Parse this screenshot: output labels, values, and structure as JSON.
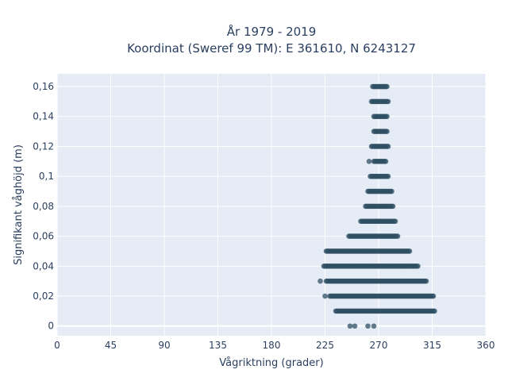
{
  "chart_data": {
    "type": "scatter",
    "title_lines": [
      "År 1979 - 2019",
      "Koordinat (Sweref 99 TM): E 361610, N 6243127"
    ],
    "xlabel": "Vågriktning (grader)",
    "ylabel": "Signifikant våghöjd (m)",
    "xlim": [
      0,
      360
    ],
    "ylim": [
      -0.0065,
      0.1685
    ],
    "x_ticks": [
      0,
      45,
      90,
      135,
      180,
      225,
      270,
      315,
      360
    ],
    "x_tick_labels": [
      "0",
      "45",
      "90",
      "135",
      "180",
      "225",
      "270",
      "315",
      "360"
    ],
    "y_ticks": [
      0,
      0.02,
      0.04,
      0.06,
      0.08,
      0.1,
      0.12,
      0.14,
      0.16
    ],
    "y_tick_labels": [
      "0",
      "0,02",
      "0,04",
      "0,06",
      "0,08",
      "0,1",
      "0,12",
      "0,14",
      "0,16"
    ],
    "grid": true,
    "marker_color": "#2f4f63",
    "background_color": "#e5ecf6",
    "bands": [
      {
        "y": 0.16,
        "x_min": 265,
        "x_max": 277
      },
      {
        "y": 0.15,
        "x_min": 264,
        "x_max": 278
      },
      {
        "y": 0.14,
        "x_min": 266,
        "x_max": 277
      },
      {
        "y": 0.13,
        "x_min": 266,
        "x_max": 277
      },
      {
        "y": 0.12,
        "x_min": 264,
        "x_max": 278
      },
      {
        "y": 0.11,
        "x_min": 266,
        "x_max": 276
      },
      {
        "y": 0.1,
        "x_min": 263,
        "x_max": 278
      },
      {
        "y": 0.09,
        "x_min": 261,
        "x_max": 281
      },
      {
        "y": 0.08,
        "x_min": 259,
        "x_max": 282
      },
      {
        "y": 0.07,
        "x_min": 255,
        "x_max": 284
      },
      {
        "y": 0.06,
        "x_min": 245,
        "x_max": 286
      },
      {
        "y": 0.05,
        "x_min": 226,
        "x_max": 296
      },
      {
        "y": 0.04,
        "x_min": 224,
        "x_max": 303
      },
      {
        "y": 0.03,
        "x_min": 226,
        "x_max": 310
      },
      {
        "y": 0.02,
        "x_min": 229,
        "x_max": 316
      },
      {
        "y": 0.01,
        "x_min": 234,
        "x_max": 317
      }
    ],
    "outliers": [
      {
        "x": 221,
        "y": 0.03
      },
      {
        "x": 225,
        "y": 0.02
      },
      {
        "x": 262,
        "y": 0.11
      },
      {
        "x": 246,
        "y": 0.0
      },
      {
        "x": 250,
        "y": 0.0
      },
      {
        "x": 261,
        "y": 0.0
      },
      {
        "x": 266,
        "y": 0.0
      }
    ]
  }
}
